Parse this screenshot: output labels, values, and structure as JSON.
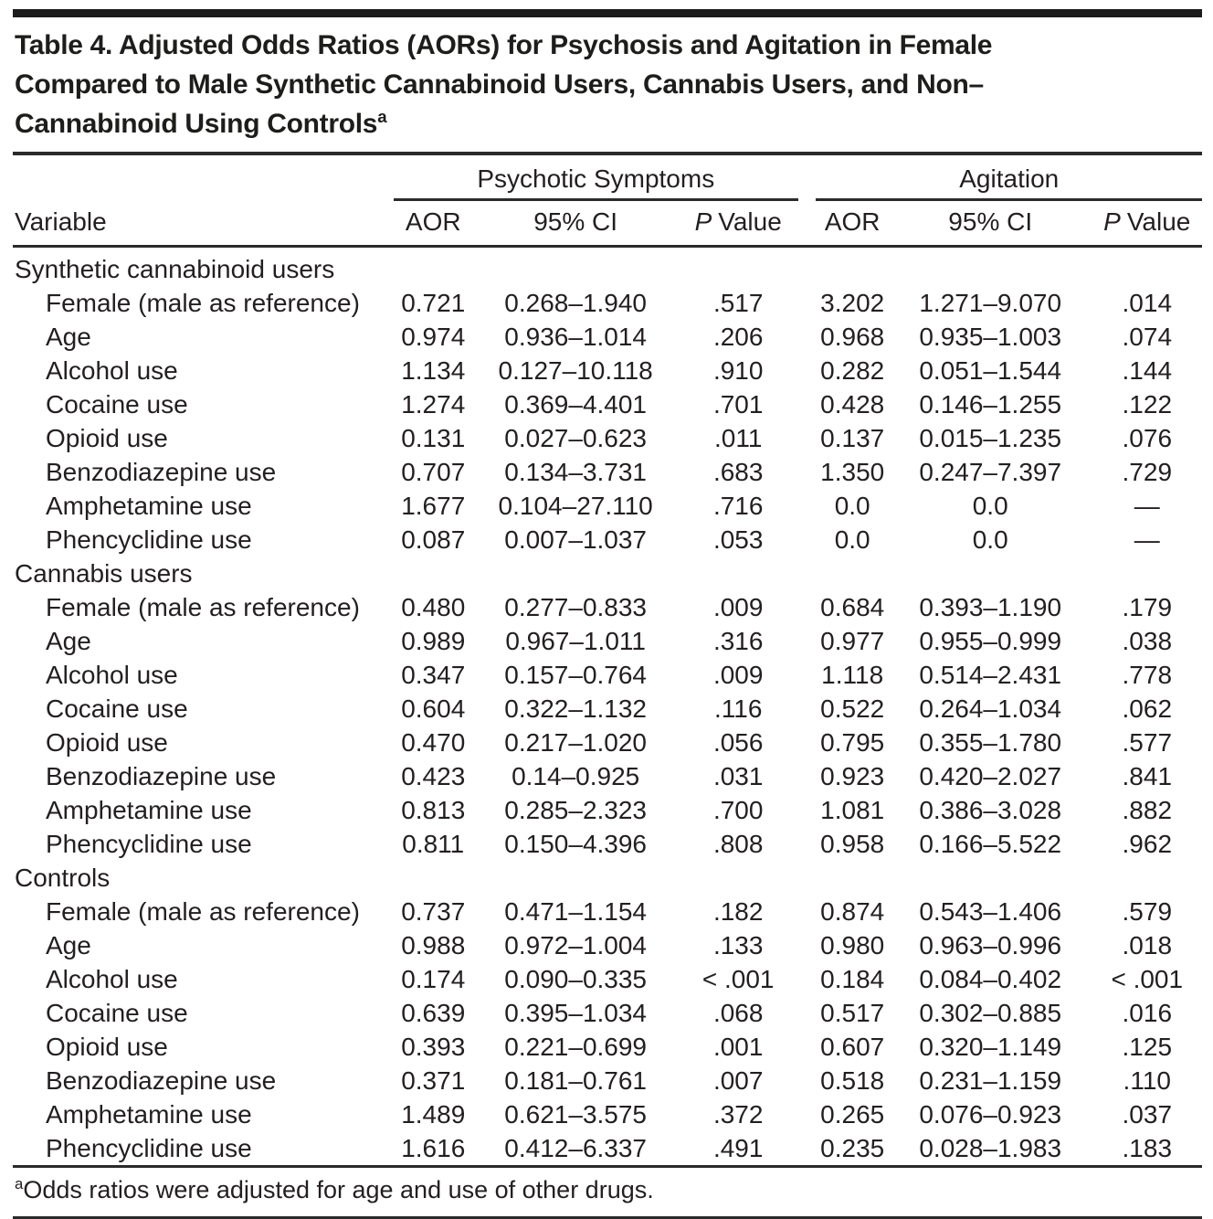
{
  "colors": {
    "ink": "#231f20",
    "rule": "#2a2a2a",
    "background": "#ffffff"
  },
  "table": {
    "title_lines": [
      "Table 4. Adjusted Odds Ratios (AORs) for Psychosis and Agitation in Female",
      "Compared to Male Synthetic Cannabinoid Users, Cannabis Users, and Non–",
      "Cannabinoid Using Controls"
    ],
    "title_superscript": "a",
    "col_groups": [
      {
        "label": "Psychotic Symptoms"
      },
      {
        "label": "Agitation"
      }
    ],
    "columns": {
      "variable": "Variable",
      "aor": "AOR",
      "ci": "95% CI",
      "p_italic": "P",
      "p_rest": "Value"
    },
    "sections": [
      {
        "header": "Synthetic cannabinoid users",
        "rows": [
          {
            "variable": "Female (male as reference)",
            "psych": {
              "aor": "0.721",
              "ci": "0.268–1.940",
              "p": ".517"
            },
            "agit": {
              "aor": "3.202",
              "ci": "1.271–9.070",
              "p": ".014"
            }
          },
          {
            "variable": "Age",
            "psych": {
              "aor": "0.974",
              "ci": "0.936–1.014",
              "p": ".206"
            },
            "agit": {
              "aor": "0.968",
              "ci": "0.935–1.003",
              "p": ".074"
            }
          },
          {
            "variable": "Alcohol use",
            "psych": {
              "aor": "1.134",
              "ci": "0.127–10.118",
              "p": ".910"
            },
            "agit": {
              "aor": "0.282",
              "ci": "0.051–1.544",
              "p": ".144"
            }
          },
          {
            "variable": "Cocaine use",
            "psych": {
              "aor": "1.274",
              "ci": "0.369–4.401",
              "p": ".701"
            },
            "agit": {
              "aor": "0.428",
              "ci": "0.146–1.255",
              "p": ".122"
            }
          },
          {
            "variable": "Opioid use",
            "psych": {
              "aor": "0.131",
              "ci": "0.027–0.623",
              "p": ".011"
            },
            "agit": {
              "aor": "0.137",
              "ci": "0.015–1.235",
              "p": ".076"
            }
          },
          {
            "variable": "Benzodiazepine use",
            "psych": {
              "aor": "0.707",
              "ci": "0.134–3.731",
              "p": ".683"
            },
            "agit": {
              "aor": "1.350",
              "ci": "0.247–7.397",
              "p": ".729"
            }
          },
          {
            "variable": "Amphetamine use",
            "psych": {
              "aor": "1.677",
              "ci": "0.104–27.110",
              "p": ".716"
            },
            "agit": {
              "aor": "0.0",
              "ci": "0.0",
              "p": "—"
            }
          },
          {
            "variable": "Phencyclidine use",
            "psych": {
              "aor": "0.087",
              "ci": "0.007–1.037",
              "p": ".053"
            },
            "agit": {
              "aor": "0.0",
              "ci": "0.0",
              "p": "—"
            }
          }
        ]
      },
      {
        "header": "Cannabis users",
        "rows": [
          {
            "variable": "Female (male as reference)",
            "psych": {
              "aor": "0.480",
              "ci": "0.277–0.833",
              "p": ".009"
            },
            "agit": {
              "aor": "0.684",
              "ci": "0.393–1.190",
              "p": ".179"
            }
          },
          {
            "variable": "Age",
            "psych": {
              "aor": "0.989",
              "ci": "0.967–1.011",
              "p": ".316"
            },
            "agit": {
              "aor": "0.977",
              "ci": "0.955–0.999",
              "p": ".038"
            }
          },
          {
            "variable": "Alcohol use",
            "psych": {
              "aor": "0.347",
              "ci": "0.157–0.764",
              "p": ".009"
            },
            "agit": {
              "aor": "1.118",
              "ci": "0.514–2.431",
              "p": ".778"
            }
          },
          {
            "variable": "Cocaine use",
            "psych": {
              "aor": "0.604",
              "ci": "0.322–1.132",
              "p": ".116"
            },
            "agit": {
              "aor": "0.522",
              "ci": "0.264–1.034",
              "p": ".062"
            }
          },
          {
            "variable": "Opioid use",
            "psych": {
              "aor": "0.470",
              "ci": "0.217–1.020",
              "p": ".056"
            },
            "agit": {
              "aor": "0.795",
              "ci": "0.355–1.780",
              "p": ".577"
            }
          },
          {
            "variable": "Benzodiazepine use",
            "psych": {
              "aor": "0.423",
              "ci": "0.14–0.925",
              "p": ".031"
            },
            "agit": {
              "aor": "0.923",
              "ci": "0.420–2.027",
              "p": ".841"
            }
          },
          {
            "variable": "Amphetamine use",
            "psych": {
              "aor": "0.813",
              "ci": "0.285–2.323",
              "p": ".700"
            },
            "agit": {
              "aor": "1.081",
              "ci": "0.386–3.028",
              "p": ".882"
            }
          },
          {
            "variable": "Phencyclidine use",
            "psych": {
              "aor": "0.811",
              "ci": "0.150–4.396",
              "p": ".808"
            },
            "agit": {
              "aor": "0.958",
              "ci": "0.166–5.522",
              "p": ".962"
            }
          }
        ]
      },
      {
        "header": "Controls",
        "rows": [
          {
            "variable": "Female (male as reference)",
            "psych": {
              "aor": "0.737",
              "ci": "0.471–1.154",
              "p": ".182"
            },
            "agit": {
              "aor": "0.874",
              "ci": "0.543–1.406",
              "p": ".579"
            }
          },
          {
            "variable": "Age",
            "psych": {
              "aor": "0.988",
              "ci": "0.972–1.004",
              "p": ".133"
            },
            "agit": {
              "aor": "0.980",
              "ci": "0.963–0.996",
              "p": ".018"
            }
          },
          {
            "variable": "Alcohol use",
            "psych": {
              "aor": "0.174",
              "ci": "0.090–0.335",
              "p": "< .001"
            },
            "agit": {
              "aor": "0.184",
              "ci": "0.084–0.402",
              "p": "< .001"
            }
          },
          {
            "variable": "Cocaine use",
            "psych": {
              "aor": "0.639",
              "ci": "0.395–1.034",
              "p": ".068"
            },
            "agit": {
              "aor": "0.517",
              "ci": "0.302–0.885",
              "p": ".016"
            }
          },
          {
            "variable": "Opioid use",
            "psych": {
              "aor": "0.393",
              "ci": "0.221–0.699",
              "p": ".001"
            },
            "agit": {
              "aor": "0.607",
              "ci": "0.320–1.149",
              "p": ".125"
            }
          },
          {
            "variable": "Benzodiazepine use",
            "psych": {
              "aor": "0.371",
              "ci": "0.181–0.761",
              "p": ".007"
            },
            "agit": {
              "aor": "0.518",
              "ci": "0.231–1.159",
              "p": ".110"
            }
          },
          {
            "variable": "Amphetamine use",
            "psych": {
              "aor": "1.489",
              "ci": "0.621–3.575",
              "p": ".372"
            },
            "agit": {
              "aor": "0.265",
              "ci": "0.076–0.923",
              "p": ".037"
            }
          },
          {
            "variable": "Phencyclidine use",
            "psych": {
              "aor": "1.616",
              "ci": "0.412–6.337",
              "p": ".491"
            },
            "agit": {
              "aor": "0.235",
              "ci": "0.028–1.983",
              "p": ".183"
            }
          }
        ]
      }
    ],
    "footnote": {
      "superscript": "a",
      "text": "Odds ratios were adjusted for age and use of other drugs."
    }
  }
}
